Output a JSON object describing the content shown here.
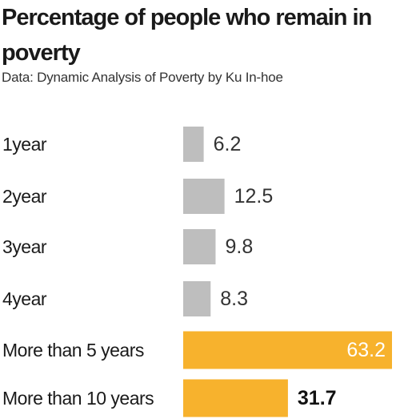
{
  "title": "Percentage of people who remain in poverty",
  "source": "Data: Dynamic Analysis of Poverty by Ku In-hoe",
  "colors": {
    "normal": "#bebebe",
    "highlight": "#f7b22d",
    "text": "#1a1a1a"
  },
  "chart_data": {
    "type": "bar",
    "orientation": "horizontal",
    "title": "Percentage of people who remain in poverty",
    "source": "Data: Dynamic Analysis of Poverty by Ku In-hoe",
    "categories": [
      "1year",
      "2year",
      "3year",
      "4year",
      "More than 5 years",
      "More than 10 years"
    ],
    "values": [
      6.2,
      12.5,
      9.8,
      8.3,
      63.2,
      31.7
    ],
    "value_labels": [
      "6.2",
      "12.5",
      "9.8",
      "8.3",
      "63.2",
      "31.7"
    ],
    "highlighted": [
      false,
      false,
      false,
      false,
      true,
      true
    ],
    "xlim": [
      0,
      63.2
    ],
    "grid": false,
    "legend": "none",
    "xlabel": "",
    "ylabel": ""
  }
}
